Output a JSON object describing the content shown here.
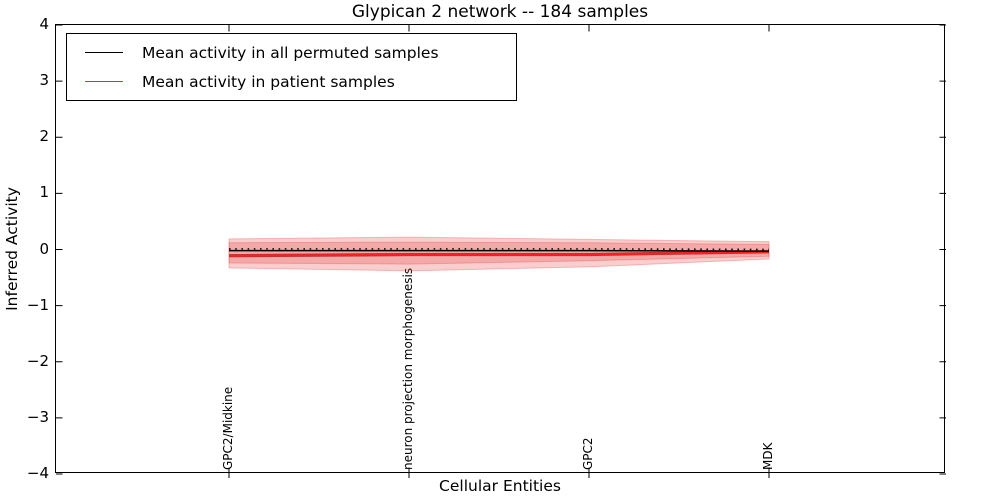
{
  "title": "Glypican 2 network -- 184 samples",
  "chart_data": {
    "type": "line",
    "title": "Glypican 2 network -- 184 samples",
    "xlabel": "Cellular Entities",
    "ylabel": "Inferred Activity",
    "ylim": [
      -4,
      4
    ],
    "yticks": [
      4,
      3,
      2,
      1,
      0,
      -1,
      -2,
      -3,
      -4
    ],
    "grid": false,
    "legend_position": "upper left",
    "x_tick_rotation": 90,
    "categories": [
      "GPC2/Midkine",
      "neuron projection morphogenesis",
      "GPC2",
      "MDK"
    ],
    "series": [
      {
        "name": "Mean activity in all permuted samples",
        "color": "#000000",
        "style": "solid-with-dotted-overlay",
        "values": [
          -0.02,
          -0.02,
          -0.02,
          -0.03
        ]
      },
      {
        "name": "Mean activity in patient samples",
        "color": "#ff1f1f",
        "style": "solid",
        "values": [
          -0.11,
          -0.09,
          -0.09,
          -0.04
        ]
      }
    ],
    "bands": [
      {
        "name": "outer-shaded-band",
        "color": "#e63c3c",
        "opacity": 0.25,
        "upper": [
          0.19,
          0.22,
          0.18,
          0.14
        ],
        "lower": [
          -0.33,
          -0.38,
          -0.31,
          -0.17
        ]
      },
      {
        "name": "inner-shaded-band",
        "color": "#e63c3c",
        "opacity": 0.25,
        "upper": [
          0.12,
          0.13,
          0.12,
          0.09
        ],
        "lower": [
          -0.24,
          -0.26,
          -0.2,
          -0.12
        ]
      }
    ]
  }
}
